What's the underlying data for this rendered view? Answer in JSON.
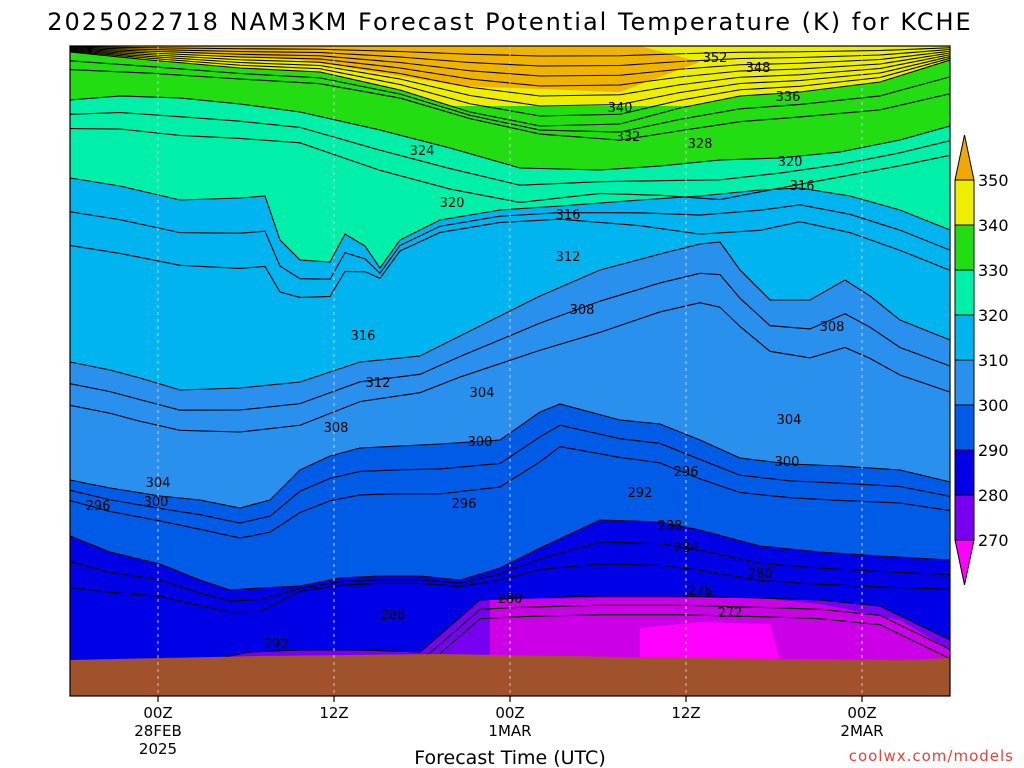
{
  "chart_data": {
    "type": "heatmap",
    "title": "2025022718 NAM3KM Forecast Potential Temperature (K) for KCHE",
    "xlabel": "Forecast Time (UTC)",
    "ylabel": "",
    "y_scale": "log-pressure (inverted)",
    "ylim": [
      1000,
      200
    ],
    "y_ticks": [
      250,
      300,
      350,
      400,
      450,
      500,
      550,
      600,
      650,
      700,
      750,
      800,
      850,
      900,
      950,
      1000
    ],
    "x_ticks": [
      {
        "label": "00Z",
        "sub": "28FEB",
        "sub2": "2025"
      },
      {
        "label": "12Z",
        "sub": "",
        "sub2": ""
      },
      {
        "label": "00Z",
        "sub": "1MAR",
        "sub2": ""
      },
      {
        "label": "12Z",
        "sub": "",
        "sub2": ""
      },
      {
        "label": "00Z",
        "sub": "2MAR",
        "sub2": ""
      }
    ],
    "colorbar": {
      "levels": [
        270,
        280,
        290,
        300,
        310,
        320,
        330,
        340,
        350
      ],
      "colors": [
        "#ee00ee",
        "#b400f0",
        "#7700f0",
        "#0000e6",
        "#005be6",
        "#2a90ee",
        "#00b4f0",
        "#00f0aa",
        "#22dd11",
        "#aaee22",
        "#eeee00",
        "#f0a800"
      ],
      "extend": "both"
    },
    "ground_color": "#a0522d",
    "contour_labels": [
      "352",
      "348",
      "340",
      "336",
      "332",
      "328",
      "324",
      "320",
      "316",
      "312",
      "308",
      "304",
      "300",
      "296",
      "292",
      "288",
      "284",
      "280",
      "276",
      "272"
    ],
    "credit": "coolwx.com/models"
  }
}
